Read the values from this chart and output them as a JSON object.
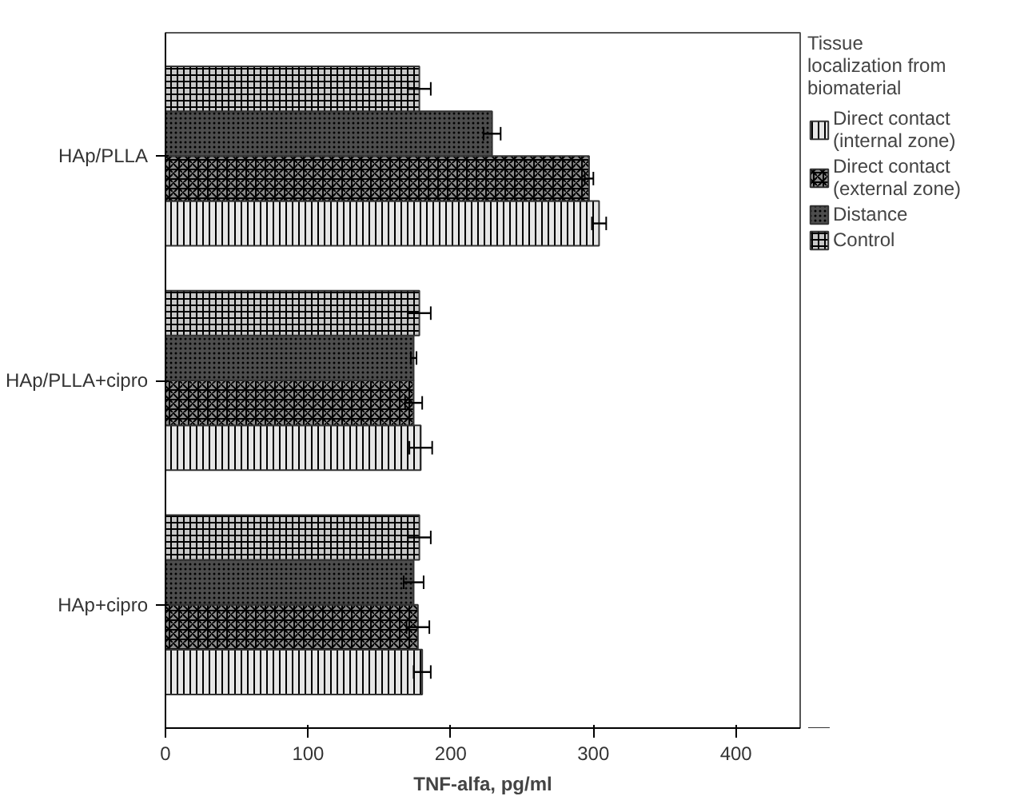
{
  "chart_data": {
    "type": "bar",
    "orientation": "horizontal",
    "xlabel": "TNF-alfa, pg/ml",
    "legend_title": "Tissue\nlocalization from\nbiomaterial",
    "categories": [
      "HAp/PLLA",
      "HAp/PLLA+cipro",
      "HAp+cipro"
    ],
    "series": [
      {
        "name": "Direct contact\n(internal zone)",
        "color": "#e6e6e6",
        "values": [
          304,
          179,
          180
        ],
        "errors": [
          5,
          8,
          6
        ]
      },
      {
        "name": "Direct contact\n(external zone)",
        "color": "#8c8c8c",
        "values": [
          297,
          174,
          177
        ],
        "errors": [
          3,
          6,
          8
        ]
      },
      {
        "name": "Distance",
        "color": "#4d4d4d",
        "values": [
          229,
          174,
          174
        ],
        "errors": [
          6,
          2,
          7
        ]
      },
      {
        "name": "Control",
        "color": "#c8c8c8",
        "values": [
          178,
          178,
          178
        ],
        "errors": [
          8,
          8,
          8
        ]
      }
    ],
    "xlim": [
      0,
      445
    ],
    "xticks": [
      0,
      100,
      200,
      300,
      400
    ],
    "grid": false,
    "legend": "right"
  }
}
